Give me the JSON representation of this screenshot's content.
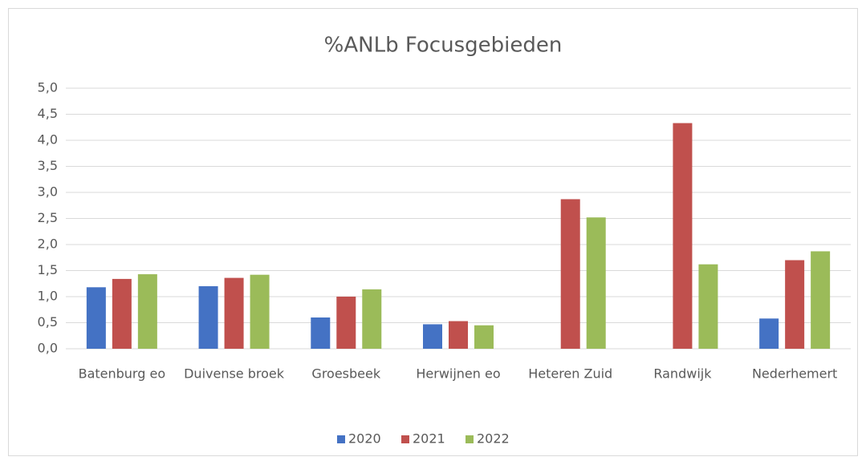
{
  "chart_data": {
    "type": "bar",
    "title": "%ANLb Focusgebieden",
    "categories": [
      "Batenburg eo",
      "Duivense broek",
      "Groesbeek",
      "Herwijnen eo",
      "Heteren Zuid",
      "Randwijk",
      "Nederhemert"
    ],
    "series": [
      {
        "name": "2020",
        "color": "#4472c4",
        "values": [
          1.18,
          1.2,
          0.6,
          0.47,
          null,
          null,
          0.58
        ]
      },
      {
        "name": "2021",
        "color": "#c0504d",
        "values": [
          1.34,
          1.36,
          1.0,
          0.53,
          2.87,
          4.33,
          1.7
        ]
      },
      {
        "name": "2022",
        "color": "#9bbb59",
        "values": [
          1.43,
          1.42,
          1.14,
          0.45,
          2.52,
          1.62,
          1.87
        ]
      }
    ],
    "ylim": [
      0,
      5
    ],
    "yticks": [
      {
        "value": 0,
        "label": "0,0"
      },
      {
        "value": 0.5,
        "label": "0,5"
      },
      {
        "value": 1,
        "label": "1,0"
      },
      {
        "value": 1.5,
        "label": "1,5"
      },
      {
        "value": 2,
        "label": "2,0"
      },
      {
        "value": 2.5,
        "label": "2,5"
      },
      {
        "value": 3,
        "label": "3,0"
      },
      {
        "value": 3.5,
        "label": "3,5"
      },
      {
        "value": 4,
        "label": "4,0"
      },
      {
        "value": 4.5,
        "label": "4,5"
      },
      {
        "value": 5,
        "label": "5,0"
      }
    ],
    "grid": true,
    "legend": "bottom"
  }
}
